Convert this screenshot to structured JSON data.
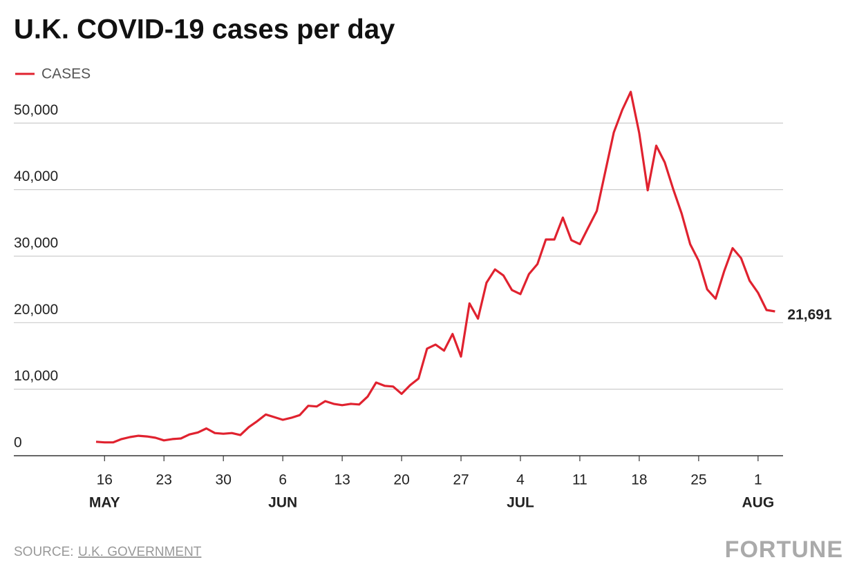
{
  "chart_data": {
    "type": "line",
    "title": "U.K. COVID-19 cases per day",
    "x": [
      "May 15",
      "May 16",
      "May 17",
      "May 18",
      "May 19",
      "May 20",
      "May 21",
      "May 22",
      "May 23",
      "May 24",
      "May 25",
      "May 26",
      "May 27",
      "May 28",
      "May 29",
      "May 30",
      "May 31",
      "Jun 1",
      "Jun 2",
      "Jun 3",
      "Jun 4",
      "Jun 5",
      "Jun 6",
      "Jun 7",
      "Jun 8",
      "Jun 9",
      "Jun 10",
      "Jun 11",
      "Jun 12",
      "Jun 13",
      "Jun 14",
      "Jun 15",
      "Jun 16",
      "Jun 17",
      "Jun 18",
      "Jun 19",
      "Jun 20",
      "Jun 21",
      "Jun 22",
      "Jun 23",
      "Jun 24",
      "Jun 25",
      "Jun 26",
      "Jun 27",
      "Jun 28",
      "Jun 29",
      "Jun 30",
      "Jul 1",
      "Jul 2",
      "Jul 3",
      "Jul 4",
      "Jul 5",
      "Jul 6",
      "Jul 7",
      "Jul 8",
      "Jul 9",
      "Jul 10",
      "Jul 11",
      "Jul 12",
      "Jul 13",
      "Jul 14",
      "Jul 15",
      "Jul 16",
      "Jul 17",
      "Jul 18",
      "Jul 19",
      "Jul 20",
      "Jul 21",
      "Jul 22",
      "Jul 23",
      "Jul 24",
      "Jul 25",
      "Jul 26",
      "Jul 27",
      "Jul 28",
      "Jul 29",
      "Jul 30",
      "Jul 31",
      "Aug 1",
      "Aug 2",
      "Aug 3"
    ],
    "series": [
      {
        "name": "CASES",
        "color": "#e0222f",
        "values": [
          2100,
          2000,
          2000,
          2500,
          2800,
          3000,
          2900,
          2700,
          2300,
          2500,
          2600,
          3200,
          3500,
          4100,
          3400,
          3300,
          3400,
          3100,
          4300,
          5200,
          6200,
          5800,
          5400,
          5700,
          6100,
          7500,
          7400,
          8200,
          7800,
          7600,
          7800,
          7700,
          8900,
          11000,
          10500,
          10400,
          9300,
          10600,
          11600,
          16100,
          16700,
          15800,
          18300,
          14900,
          22900,
          20600,
          26000,
          28000,
          27100,
          24900,
          24300,
          27300,
          28800,
          32500,
          32500,
          35800,
          32400,
          31800,
          34300,
          36800,
          42700,
          48600,
          52000,
          54700,
          48500,
          39900,
          46600,
          44100,
          40100,
          36400,
          31800,
          29300,
          25000,
          23600,
          27700,
          31200,
          29700,
          26300,
          24500,
          21900,
          21691
        ],
        "value_labels": [
          null,
          null,
          null,
          null,
          null,
          null,
          null,
          null,
          null,
          null,
          null,
          null,
          null,
          null,
          null,
          null,
          null,
          null,
          null,
          null,
          null,
          null,
          null,
          null,
          null,
          null,
          null,
          null,
          null,
          null,
          null,
          null,
          null,
          null,
          null,
          null,
          null,
          null,
          null,
          null,
          null,
          null,
          null,
          null,
          null,
          null,
          null,
          null,
          null,
          null,
          null,
          null,
          null,
          null,
          null,
          null,
          null,
          null,
          null,
          null,
          null,
          null,
          null,
          null,
          null,
          null,
          null,
          null,
          null,
          null,
          null,
          null,
          null,
          null,
          null,
          null,
          null,
          null,
          null,
          null,
          "21,691"
        ]
      }
    ],
    "ylim": [
      0,
      54700
    ],
    "yticks": [
      0,
      {
        "value": 10000,
        "label": "10,000"
      },
      {
        "value": 20000,
        "label": "20,000"
      },
      {
        "value": 30000,
        "label": "30,000"
      },
      {
        "value": 40000,
        "label": "40,000"
      },
      {
        "value": 50000,
        "label": "50,000"
      }
    ],
    "xticks": [
      {
        "value": "May 16",
        "label": "16"
      },
      {
        "value": "May 23",
        "label": "23"
      },
      {
        "value": "May 30",
        "label": "30"
      },
      {
        "value": "Jun 6",
        "label": "6"
      },
      {
        "value": "Jun 13",
        "label": "13"
      },
      {
        "value": "Jun 20",
        "label": "20"
      },
      {
        "value": "Jun 27",
        "label": "27"
      },
      {
        "value": "Jul 4",
        "label": "4"
      },
      {
        "value": "Jul 11",
        "label": "11"
      },
      {
        "value": "Jul 18",
        "label": "18"
      },
      {
        "value": "Jul 25",
        "label": "25"
      },
      {
        "value": "Aug 1",
        "label": "1"
      }
    ],
    "xtick_months": [
      {
        "value": "May 16",
        "label": "MAY"
      },
      {
        "value": "Jun 6",
        "label": "JUN"
      },
      {
        "value": "Jul 4",
        "label": "JUL"
      },
      {
        "value": "Aug 1",
        "label": "AUG"
      }
    ],
    "grid": true,
    "source_label": "SOURCE:",
    "source": "U.K. GOVERNMENT",
    "logo": "FORTUNE"
  }
}
